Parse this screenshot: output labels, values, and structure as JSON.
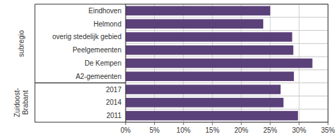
{
  "chart_data": {
    "type": "bar",
    "orientation": "horizontal",
    "categories": [
      "Eindhoven",
      "Helmond",
      "overig stedelijk gebied",
      "Peelgemeenten",
      "De Kempen",
      "A2-gemeenten",
      "2017",
      "2014",
      "2011"
    ],
    "values": [
      0.25,
      0.238,
      0.288,
      0.29,
      0.323,
      0.291,
      0.268,
      0.273,
      0.298
    ],
    "color": "#5b4179",
    "xlim": [
      0,
      0.35
    ],
    "xticks": [
      {
        "value": 0.0,
        "label": "0%"
      },
      {
        "value": 0.05,
        "label": "5%"
      },
      {
        "value": 0.1,
        "label": "10%"
      },
      {
        "value": 0.15,
        "label": "15%"
      },
      {
        "value": 0.2,
        "label": "20%"
      },
      {
        "value": 0.25,
        "label": "25%"
      },
      {
        "value": 0.3,
        "label": "30%"
      },
      {
        "value": 0.35,
        "label": "35%"
      }
    ],
    "grid": true,
    "groups": [
      {
        "label": "subregio",
        "count": 6
      },
      {
        "label": "Zuidoost-\nBrabant",
        "count": 3
      }
    ]
  }
}
